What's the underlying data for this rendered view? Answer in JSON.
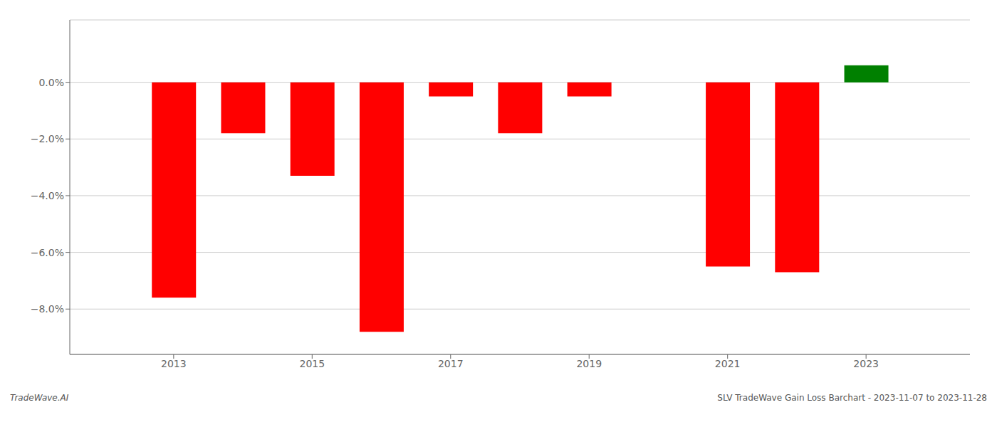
{
  "chart_data": {
    "type": "bar",
    "x": [
      2013,
      2014,
      2015,
      2016,
      2017,
      2018,
      2019,
      2021,
      2022,
      2023
    ],
    "values": [
      -0.076,
      -0.018,
      -0.033,
      -0.088,
      -0.005,
      -0.018,
      -0.005,
      -0.065,
      -0.067,
      0.006
    ],
    "colors": [
      "red",
      "red",
      "red",
      "red",
      "red",
      "red",
      "red",
      "red",
      "red",
      "green"
    ],
    "xlim": [
      2011.5,
      2024.5
    ],
    "xticks": [
      2013,
      2015,
      2017,
      2019,
      2021,
      2023
    ],
    "ylim": [
      -0.096,
      0.022
    ],
    "yticks": [
      {
        "value": 0.0,
        "label": "0.0%"
      },
      {
        "value": -0.02,
        "label": "−2.0%"
      },
      {
        "value": -0.04,
        "label": "−4.0%"
      },
      {
        "value": -0.06,
        "label": "−6.0%"
      },
      {
        "value": -0.08,
        "label": "−8.0%"
      }
    ],
    "grid": true,
    "annotations": [
      "TradeWave.AI",
      "SLV TradeWave Gain Loss Barchart - 2023-11-07 to 2023-11-28"
    ]
  }
}
